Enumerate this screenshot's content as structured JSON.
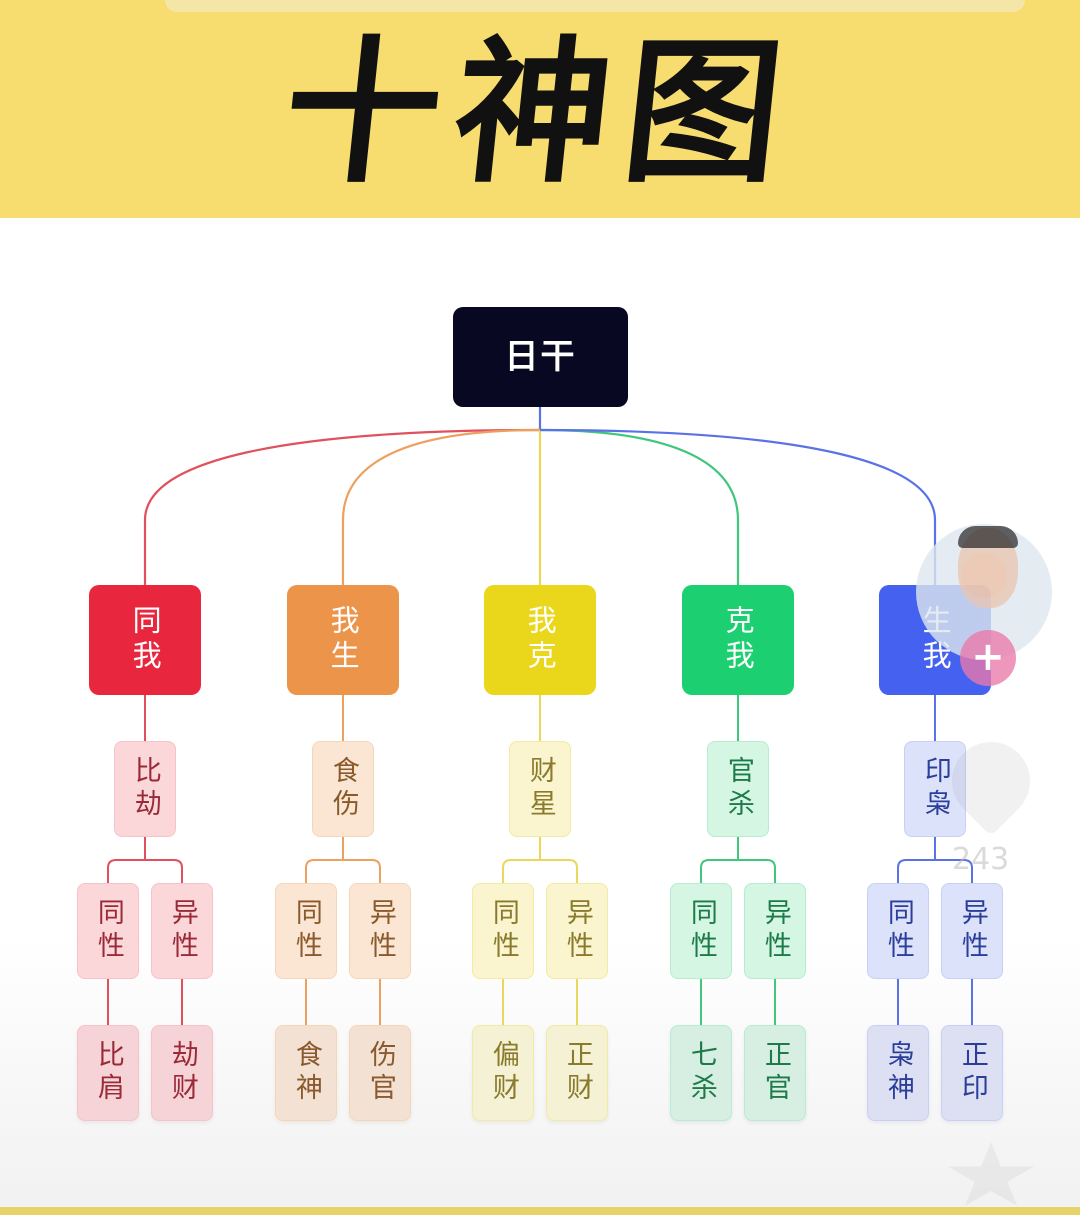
{
  "title": "十神图",
  "root": {
    "label": "日干"
  },
  "categories": [
    {
      "id": "tongwo",
      "label": "同我",
      "subLabel": "比劫",
      "split": [
        "同性",
        "异性"
      ],
      "leaves": [
        "比肩",
        "劫财"
      ],
      "colors": {
        "main": "#e8273e",
        "line": "#e0505d",
        "star": "#fbd7da",
        "leaf": "#f6d3d6",
        "text": "#9b2a38",
        "starBorder": "#f7c3c8"
      }
    },
    {
      "id": "wosheng",
      "label": "我生",
      "subLabel": "食伤",
      "split": [
        "同性",
        "异性"
      ],
      "leaves": [
        "食神",
        "伤官"
      ],
      "colors": {
        "main": "#ec944a",
        "line": "#eda160",
        "star": "#fae6d3",
        "leaf": "#f3e2d4",
        "text": "#8a5a2c",
        "starBorder": "#f6d6b6"
      }
    },
    {
      "id": "woke",
      "label": "我克",
      "subLabel": "财星",
      "split": [
        "同性",
        "异性"
      ],
      "leaves": [
        "偏财",
        "正财"
      ],
      "colors": {
        "main": "#ead61a",
        "line": "#ebd75c",
        "star": "#faf4cf",
        "leaf": "#f4f1d4",
        "text": "#8a7a2c",
        "starBorder": "#f3eaa4"
      }
    },
    {
      "id": "kewo",
      "label": "克我",
      "subLabel": "官杀",
      "split": [
        "同性",
        "异性"
      ],
      "leaves": [
        "七杀",
        "正官"
      ],
      "colors": {
        "main": "#1ccf71",
        "line": "#3fc77c",
        "star": "#d4f6e3",
        "leaf": "#d6efe2",
        "text": "#1e7a48",
        "starBorder": "#b6ecd0"
      }
    },
    {
      "id": "shengwo",
      "label": "生我",
      "subLabel": "印枭",
      "split": [
        "同性",
        "异性"
      ],
      "leaves": [
        "枭神",
        "正印"
      ],
      "colors": {
        "main": "#4561ef",
        "line": "#5a72e6",
        "star": "#dde2fb",
        "leaf": "#dde0f3",
        "text": "#2b3f9a",
        "starBorder": "#c8d0f7"
      }
    }
  ],
  "overlay": {
    "follow_symbol": "+",
    "like_count": "243"
  }
}
